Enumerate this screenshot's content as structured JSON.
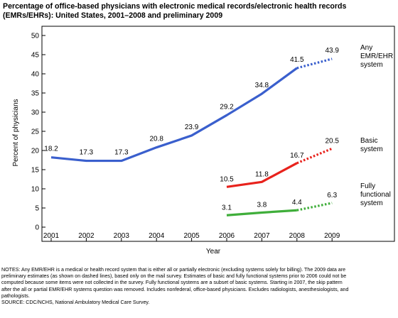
{
  "header": {
    "title_lines": [
      "Percentage of office-based physicians with electronic medical records/electronic health records",
      "(EMRs/EHRs): United States, 2001–2008 and preliminary 2009"
    ]
  },
  "chart_data": {
    "type": "line",
    "title": "Percentage of office-based physicians with electronic medical records/electronic health records (EMRs/EHRs): United States, 2001–2008 and preliminary 2009",
    "xlabel": "Year",
    "ylabel": "Percent of physicians",
    "ylim": [
      0,
      50
    ],
    "yticks": [
      "0",
      "5",
      "10",
      "15",
      "20",
      "25",
      "30",
      "35",
      "40",
      "45",
      "50"
    ],
    "xticks": [
      "2001",
      "2002",
      "2003",
      "2004",
      "2005",
      "2006",
      "2007",
      "2008",
      "2009"
    ],
    "grid": false,
    "legend": "right-side labels",
    "preliminary_from": "2008",
    "series": [
      {
        "name": "Any EMR/EHR system",
        "label_lines": [
          "Any",
          "EMR/EHR",
          "system"
        ],
        "color": "#3a5fcd",
        "points": [
          {
            "x": "2001",
            "y": 18.2,
            "label": "18.2"
          },
          {
            "x": "2002",
            "y": 17.3,
            "label": "17.3"
          },
          {
            "x": "2003",
            "y": 17.3,
            "label": "17.3"
          },
          {
            "x": "2004",
            "y": 20.8,
            "label": "20.8"
          },
          {
            "x": "2005",
            "y": 23.9,
            "label": "23.9"
          },
          {
            "x": "2006",
            "y": 29.2,
            "label": "29.2"
          },
          {
            "x": "2007",
            "y": 34.8,
            "label": "34.8"
          },
          {
            "x": "2008",
            "y": 41.5,
            "label": "41.5"
          },
          {
            "x": "2009",
            "y": 43.9,
            "label": "43.9"
          }
        ]
      },
      {
        "name": "Basic system",
        "label_lines": [
          "Basic",
          "system"
        ],
        "color": "#e8221c",
        "points": [
          {
            "x": "2006",
            "y": 10.5,
            "label": "10.5"
          },
          {
            "x": "2007",
            "y": 11.8,
            "label": "11.8"
          },
          {
            "x": "2008",
            "y": 16.7,
            "label": "16.7"
          },
          {
            "x": "2009",
            "y": 20.5,
            "label": "20.5"
          }
        ]
      },
      {
        "name": "Fully functional system",
        "label_lines": [
          "Fully",
          "functional",
          "system"
        ],
        "color": "#3fae3a",
        "points": [
          {
            "x": "2006",
            "y": 3.1,
            "label": "3.1"
          },
          {
            "x": "2007",
            "y": 3.8,
            "label": "3.8"
          },
          {
            "x": "2008",
            "y": 4.4,
            "label": "4.4"
          },
          {
            "x": "2009",
            "y": 6.3,
            "label": "6.3"
          }
        ]
      }
    ]
  },
  "notes": {
    "lines": [
      "NOTES: Any EMR/EHR is a medical or health record system that is either all or partially electronic (excluding systems solely for billing). The 2009 data are",
      "preliminary estimates (as shown on dashed lines), based only on the mail survey. Estimates of basic and fully functional systems prior to 2006 could not be",
      "computed because some items were not collected in the survey. Fully functional systems are a subset of basic systems. Starting in 2007, the skip pattern",
      "after the all or partial EMR/EHR systems question was removed. Includes nonfederal, office-based physicians. Excludes radiologists, anesthesiologists, and",
      "pathologists.",
      "SOURCE: CDC/NCHS, National Ambulatory Medical Care Survey."
    ]
  }
}
